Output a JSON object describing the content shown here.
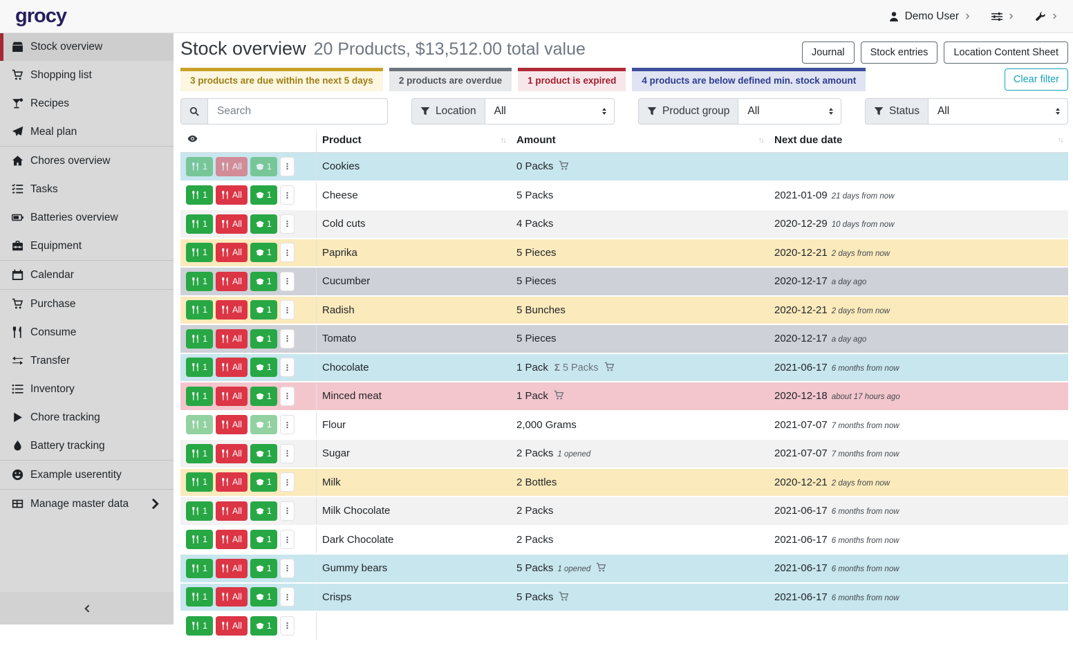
{
  "navbar": {
    "logo": "grocy",
    "user": "Demo User"
  },
  "sidebar": {
    "items": [
      {
        "label": "Stock overview",
        "icon": "box-icon",
        "active": true
      },
      {
        "label": "Shopping list",
        "icon": "cart-icon"
      },
      {
        "label": "Recipes",
        "icon": "cocktail-icon"
      },
      {
        "label": "Meal plan",
        "icon": "paper-plane-icon",
        "divider_after": true
      },
      {
        "label": "Chores overview",
        "icon": "home-icon"
      },
      {
        "label": "Tasks",
        "icon": "tasks-icon"
      },
      {
        "label": "Batteries overview",
        "icon": "battery-icon"
      },
      {
        "label": "Equipment",
        "icon": "toolbox-icon",
        "divider_after": true
      },
      {
        "label": "Calendar",
        "icon": "calendar-icon",
        "divider_after": true
      },
      {
        "label": "Purchase",
        "icon": "cart-icon"
      },
      {
        "label": "Consume",
        "icon": "utensils-icon"
      },
      {
        "label": "Transfer",
        "icon": "exchange-icon"
      },
      {
        "label": "Inventory",
        "icon": "list-icon"
      },
      {
        "label": "Chore tracking",
        "icon": "play-icon"
      },
      {
        "label": "Battery tracking",
        "icon": "droplet-icon",
        "divider_after": true
      },
      {
        "label": "Example userentity",
        "icon": "smiley-icon",
        "divider_after": true
      },
      {
        "label": "Manage master data",
        "icon": "table-icon",
        "chevron": true
      }
    ]
  },
  "header": {
    "title": "Stock overview",
    "subtitle": "20 Products, $13,512.00 total value",
    "buttons": [
      "Journal",
      "Stock entries",
      "Location Content Sheet"
    ]
  },
  "banners": [
    {
      "type": "due",
      "text": "3 products are due within the next 5 days"
    },
    {
      "type": "overdue",
      "text": "2 products are overdue"
    },
    {
      "type": "expired",
      "text": "1 product is expired"
    },
    {
      "type": "below-min",
      "text": "4 products are below defined min. stock amount"
    }
  ],
  "clear_filter_label": "Clear filter",
  "filters": {
    "search_placeholder": "Search",
    "dropdowns": [
      {
        "label": "Location",
        "value": "All"
      },
      {
        "label": "Product group",
        "value": "All"
      },
      {
        "label": "Status",
        "value": "All"
      }
    ]
  },
  "table": {
    "columns": [
      "Product",
      "Amount",
      "Next due date"
    ],
    "row_buttons": {
      "consume_one": "1",
      "consume_all": "All",
      "open_one": "1"
    },
    "rows": [
      {
        "product": "Cookies",
        "amount": "0 Packs",
        "cart": true,
        "due_date": "",
        "due_relative": "",
        "status": "below-min",
        "faded": [
          "consume_one",
          "consume_all",
          "open_one"
        ]
      },
      {
        "product": "Cheese",
        "amount": "5 Packs",
        "due_date": "2021-01-09",
        "due_relative": "21 days from now",
        "status": "white"
      },
      {
        "product": "Cold cuts",
        "amount": "4 Packs",
        "due_date": "2020-12-29",
        "due_relative": "10 days from now",
        "status": "stripe"
      },
      {
        "product": "Paprika",
        "amount": "5 Pieces",
        "due_date": "2020-12-21",
        "due_relative": "2 days from now",
        "status": "due-soon"
      },
      {
        "product": "Cucumber",
        "amount": "5 Pieces",
        "due_date": "2020-12-17",
        "due_relative": "a day ago",
        "status": "overdue"
      },
      {
        "product": "Radish",
        "amount": "5 Bunches",
        "due_date": "2020-12-21",
        "due_relative": "2 days from now",
        "status": "due-soon"
      },
      {
        "product": "Tomato",
        "amount": "5 Pieces",
        "due_date": "2020-12-17",
        "due_relative": "a day ago",
        "status": "overdue"
      },
      {
        "product": "Chocolate",
        "amount": "1 Pack",
        "amount_sum": "5 Packs",
        "cart": true,
        "due_date": "2021-06-17",
        "due_relative": "6 months from now",
        "status": "below-min"
      },
      {
        "product": "Minced meat",
        "amount": "1 Pack",
        "cart": true,
        "due_date": "2020-12-18",
        "due_relative": "about 17 hours ago",
        "status": "expired"
      },
      {
        "product": "Flour",
        "amount": "2,000 Grams",
        "due_date": "2021-07-07",
        "due_relative": "7 months from now",
        "status": "white",
        "faded": [
          "consume_one",
          "open_one"
        ]
      },
      {
        "product": "Sugar",
        "amount": "2 Packs",
        "amount_extra": "1 opened",
        "due_date": "2021-07-07",
        "due_relative": "7 months from now",
        "status": "stripe"
      },
      {
        "product": "Milk",
        "amount": "2 Bottles",
        "due_date": "2020-12-21",
        "due_relative": "2 days from now",
        "status": "due-soon"
      },
      {
        "product": "Milk Chocolate",
        "amount": "2 Packs",
        "due_date": "2021-06-17",
        "due_relative": "6 months from now",
        "status": "stripe"
      },
      {
        "product": "Dark Chocolate",
        "amount": "2 Packs",
        "due_date": "2021-06-17",
        "due_relative": "6 months from now",
        "status": "white"
      },
      {
        "product": "Gummy bears",
        "amount": "5 Packs",
        "amount_extra": "1 opened",
        "cart": true,
        "due_date": "2021-06-17",
        "due_relative": "6 months from now",
        "status": "below-min"
      },
      {
        "product": "Crisps",
        "amount": "5 Packs",
        "cart": true,
        "due_date": "2021-06-17",
        "due_relative": "6 months from now",
        "status": "below-min"
      },
      {
        "product": "",
        "amount": "",
        "due_date": "",
        "due_relative": "",
        "status": "white",
        "partial": true
      }
    ]
  },
  "colors": {
    "brand_logo": "#251f5e",
    "active_nav_accent": "#a62834",
    "banner_due_accent": "#c9a227",
    "banner_overdue_accent": "#6c757d",
    "banner_expired_accent": "#b02a37",
    "banner_below_min_accent": "#3e4f9e",
    "clear_filter_accent": "#17a2b8",
    "button_consume": "#28a745",
    "button_consume_all": "#dc3545",
    "row_below_min": "#c8e6ee",
    "row_due_soon": "#fbeabc",
    "row_overdue": "#ced1d7",
    "row_expired": "#f3c6cd"
  }
}
